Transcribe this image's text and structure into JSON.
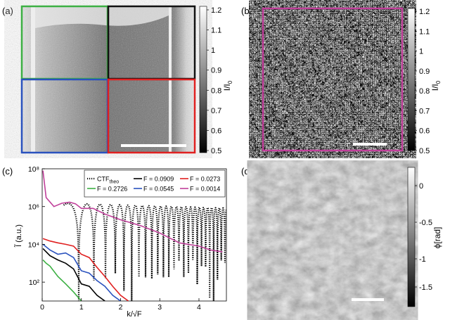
{
  "panels": {
    "a": {
      "label": "(a)",
      "colorbar": {
        "ticks": [
          "1.2",
          "1.1",
          "1",
          "0.9",
          "0.8",
          "0.7",
          "0.6",
          "0.5"
        ],
        "label": "I/I",
        "label_sub": "0"
      },
      "frame_colors": {
        "top_left": "#3cb043",
        "top_right": "#111111",
        "bottom_left": "#2a52be",
        "bottom_right": "#e02020"
      }
    },
    "b": {
      "label": "(b)",
      "colorbar": {
        "ticks": [
          "1.2",
          "1.1",
          "1",
          "0.9",
          "0.8",
          "0.7",
          "0.6",
          "0.5"
        ],
        "label": "I/I",
        "label_sub": "0"
      },
      "frame_color": "#c0409a"
    },
    "c": {
      "label": "(c)"
    },
    "d": {
      "label": "(d)",
      "colorbar": {
        "ticks": [
          "0",
          "-0.5",
          "-1",
          "-1.5"
        ],
        "label": "ϕ[rad]"
      }
    }
  },
  "chart_data": {
    "type": "line",
    "title": "",
    "xlabel": "k/√F",
    "ylabel": "Ĩ (a.u.)",
    "yscale": "log",
    "xlim": [
      0,
      4.7
    ],
    "ylim": [
      10,
      100000000
    ],
    "x_ticks": [
      "0",
      "1",
      "2",
      "3",
      "4"
    ],
    "y_ticks": [
      "10²",
      "10⁴",
      "10⁶",
      "10⁸"
    ],
    "legend": {
      "placement": "top-right",
      "entries": [
        {
          "name": "CTF",
          "sub": "theo",
          "color": "#000000",
          "style": "dotted"
        },
        {
          "name": "F = 0.0909",
          "color": "#000000",
          "style": "solid"
        },
        {
          "name": "F = 0.0273",
          "color": "#e02020",
          "style": "solid"
        },
        {
          "name": "F = 0.2726",
          "color": "#3cb043",
          "style": "solid"
        },
        {
          "name": "F = 0.0545",
          "color": "#2a52be",
          "style": "solid"
        },
        {
          "name": "F = 0.0014",
          "color": "#c0409a",
          "style": "solid"
        }
      ]
    },
    "series": [
      {
        "name": "F = 0.0014",
        "color": "#c0409a",
        "x": [
          0.02,
          0.1,
          0.3,
          0.5,
          0.7,
          0.85,
          1.0,
          1.3,
          1.6,
          2.0,
          2.5,
          3.0,
          3.5,
          4.0,
          4.3,
          4.6
        ],
        "y": [
          80000000,
          3000000,
          1000000,
          1500000,
          1700000,
          1400000,
          800000,
          800000,
          400000,
          200000,
          100000,
          40000,
          12000,
          8000,
          5000,
          4000
        ]
      },
      {
        "name": "F = 0.0273",
        "color": "#e02020",
        "x": [
          0.02,
          0.2,
          0.4,
          0.6,
          0.8,
          1.0,
          1.2,
          1.4,
          1.6,
          1.8,
          2.0,
          2.2
        ],
        "y": [
          20000,
          15000,
          12000,
          10000,
          8000,
          3000,
          2000,
          600,
          200,
          60,
          20,
          10
        ]
      },
      {
        "name": "F = 0.0545",
        "color": "#2a52be",
        "x": [
          0.02,
          0.2,
          0.4,
          0.6,
          0.8,
          1.0,
          1.2,
          1.4,
          1.6,
          1.8,
          2.0
        ],
        "y": [
          10000,
          5000,
          3000,
          3500,
          2000,
          400,
          300,
          120,
          60,
          20,
          10
        ]
      },
      {
        "name": "F = 0.0909",
        "color": "#000000",
        "x": [
          0.02,
          0.2,
          0.4,
          0.6,
          0.8,
          1.0,
          1.2,
          1.4,
          1.6
        ],
        "y": [
          6000,
          2500,
          1500,
          1000,
          500,
          80,
          60,
          20,
          10
        ]
      },
      {
        "name": "F = 0.2726",
        "color": "#3cb043",
        "x": [
          0.02,
          0.1,
          0.2,
          0.4,
          0.6,
          0.8,
          1.0
        ],
        "y": [
          1500,
          1000,
          700,
          200,
          80,
          30,
          10
        ]
      }
    ],
    "ctf_theo": {
      "name": "CTF",
      "color": "#000000",
      "style": "dotted",
      "envelope_max": 1500000,
      "envelope_min_lower": 10
    }
  }
}
